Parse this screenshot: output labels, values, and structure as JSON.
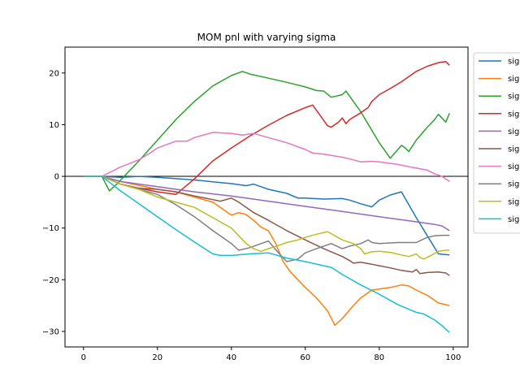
{
  "chart_data": {
    "type": "line",
    "title": "MOM pnl with varying sigma",
    "xlabel": "",
    "ylabel": "",
    "xlim": [
      -5,
      104
    ],
    "ylim": [
      -33,
      25
    ],
    "x_ticks": [
      0,
      20,
      40,
      60,
      80,
      100
    ],
    "y_ticks": [
      -30,
      -20,
      -10,
      0,
      10,
      20
    ],
    "y_tick_labels": [
      "−30",
      "−20",
      "−10",
      "0",
      "10",
      "20"
    ],
    "zero_line": true,
    "grid": false,
    "legend": "right, clipped",
    "legend_labels": [
      "sig",
      "sig",
      "sig",
      "sig",
      "sig",
      "sig",
      "sig",
      "sig",
      "sig",
      "sig"
    ],
    "series": [
      {
        "color": "#1f77b4",
        "x": [
          0,
          5,
          10,
          15,
          20,
          30,
          40,
          44,
          46,
          48,
          50,
          55,
          58,
          60,
          65,
          70,
          72,
          75,
          78,
          80,
          83,
          86,
          88,
          90,
          93,
          96,
          99
        ],
        "y": [
          0,
          0,
          -0.2,
          0,
          -0.2,
          -0.7,
          -1.4,
          -1.8,
          -1.5,
          -2.0,
          -2.5,
          -3.3,
          -4.2,
          -4.2,
          -4.4,
          -4.3,
          -4.6,
          -5.3,
          -5.9,
          -4.6,
          -3.6,
          -3.0,
          -5.5,
          -8.0,
          -11.5,
          -15.0,
          -15.2
        ]
      },
      {
        "color": "#ff7f0e",
        "x": [
          0,
          5,
          10,
          20,
          25,
          30,
          35,
          38,
          40,
          42,
          44,
          46,
          48,
          50,
          52,
          54,
          56,
          58,
          60,
          63,
          66,
          68,
          70,
          73,
          75,
          78,
          80,
          83,
          86,
          88,
          90,
          93,
          96,
          99
        ],
        "y": [
          0,
          0,
          -1.0,
          -2.5,
          -3.0,
          -4.0,
          -5.0,
          -6.5,
          -7.5,
          -7.0,
          -7.4,
          -8.5,
          -9.8,
          -10.5,
          -13.0,
          -16.5,
          -18.5,
          -20.0,
          -21.5,
          -23.5,
          -26.0,
          -28.8,
          -27.5,
          -25.0,
          -23.5,
          -22.0,
          -21.8,
          -21.5,
          -21.0,
          -21.2,
          -22.0,
          -23.0,
          -24.5,
          -25.0
        ]
      },
      {
        "color": "#2ca02c",
        "x": [
          0,
          5,
          7,
          9,
          15,
          20,
          25,
          30,
          35,
          40,
          43,
          45,
          50,
          55,
          60,
          63,
          65,
          67,
          70,
          71,
          73,
          75,
          80,
          83,
          86,
          87,
          88,
          90,
          93,
          95,
          96,
          98,
          99
        ],
        "y": [
          0,
          0,
          -2.8,
          -1.5,
          3.0,
          7.0,
          11.0,
          14.5,
          17.5,
          19.5,
          20.3,
          19.8,
          19.0,
          18.2,
          17.3,
          16.6,
          16.5,
          15.3,
          15.8,
          16.5,
          14.5,
          12.5,
          6.5,
          3.5,
          6.0,
          5.5,
          4.8,
          7.0,
          9.5,
          11.0,
          12.0,
          10.5,
          12.2
        ]
      },
      {
        "color": "#d62728",
        "x": [
          0,
          5,
          10,
          15,
          20,
          25,
          30,
          35,
          40,
          45,
          50,
          55,
          60,
          62,
          64,
          66,
          67,
          69,
          70,
          71,
          72,
          75,
          77,
          78,
          80,
          83,
          86,
          88,
          90,
          93,
          96,
          98,
          99
        ],
        "y": [
          0,
          0,
          -1.5,
          -2.3,
          -3.0,
          -3.5,
          -0.5,
          3.0,
          5.5,
          7.8,
          9.9,
          11.8,
          13.3,
          13.8,
          11.8,
          9.8,
          9.5,
          10.5,
          11.3,
          10.2,
          11.0,
          12.3,
          13.3,
          14.5,
          15.8,
          17.0,
          18.3,
          19.3,
          20.3,
          21.3,
          22.0,
          22.2,
          21.5
        ]
      },
      {
        "color": "#9467bd",
        "x": [
          0,
          5,
          10,
          20,
          30,
          40,
          50,
          60,
          70,
          80,
          90,
          95,
          97,
          99
        ],
        "y": [
          0,
          0,
          -1.0,
          -2.0,
          -3.0,
          -3.8,
          -4.8,
          -5.8,
          -6.8,
          -7.8,
          -8.8,
          -9.3,
          -9.6,
          -10.5
        ]
      },
      {
        "color": "#8c564b",
        "x": [
          0,
          5,
          10,
          15,
          20,
          25,
          30,
          35,
          37,
          40,
          42,
          44,
          46,
          50,
          55,
          60,
          65,
          70,
          72,
          73,
          75,
          78,
          80,
          83,
          86,
          89,
          90,
          91,
          93,
          96,
          98,
          99
        ],
        "y": [
          0,
          0,
          -1.5,
          -2.3,
          -2.5,
          -3.0,
          -3.8,
          -4.5,
          -4.8,
          -4.2,
          -5.0,
          -6.0,
          -7.0,
          -8.5,
          -10.5,
          -12.3,
          -14.0,
          -15.5,
          -16.3,
          -16.8,
          -16.6,
          -17.0,
          -17.3,
          -17.7,
          -18.2,
          -18.5,
          -18.0,
          -18.8,
          -18.6,
          -18.5,
          -18.7,
          -19.2
        ]
      },
      {
        "color": "#e377c2",
        "x": [
          0,
          5,
          10,
          15,
          18,
          20,
          25,
          28,
          30,
          35,
          40,
          43,
          46,
          48,
          50,
          55,
          60,
          62,
          65,
          70,
          73,
          75,
          78,
          80,
          85,
          90,
          93,
          95,
          97,
          99
        ],
        "y": [
          0,
          0,
          1.8,
          3.2,
          4.5,
          5.5,
          6.8,
          6.8,
          7.5,
          8.5,
          8.3,
          8.0,
          8.3,
          7.9,
          7.5,
          6.5,
          5.2,
          4.5,
          4.3,
          3.7,
          3.2,
          2.8,
          2.9,
          2.8,
          2.3,
          1.6,
          1.2,
          0.5,
          0.0,
          -1.0
        ]
      },
      {
        "color": "#7f7f7f",
        "x": [
          0,
          5,
          10,
          15,
          20,
          25,
          30,
          35,
          40,
          42,
          45,
          48,
          50,
          53,
          55,
          58,
          60,
          63,
          65,
          67,
          70,
          72,
          75,
          77,
          78,
          80,
          85,
          90,
          93,
          95,
          97,
          99
        ],
        "y": [
          0,
          0,
          -1.5,
          -2.5,
          -3.5,
          -5.5,
          -7.8,
          -10.5,
          -13.0,
          -14.3,
          -13.8,
          -13.0,
          -12.5,
          -15.0,
          -16.5,
          -16.0,
          -14.8,
          -14.0,
          -13.5,
          -13.0,
          -14.0,
          -13.5,
          -13.0,
          -12.3,
          -12.8,
          -13.0,
          -12.8,
          -12.8,
          -11.8,
          -11.5,
          -11.4,
          -11.4
        ]
      },
      {
        "color": "#bcbd22",
        "x": [
          0,
          5,
          10,
          15,
          20,
          25,
          30,
          35,
          38,
          40,
          42,
          44,
          46,
          48,
          50,
          53,
          55,
          58,
          60,
          63,
          66,
          68,
          70,
          73,
          75,
          76,
          78,
          80,
          83,
          86,
          88,
          90,
          91,
          92,
          94,
          96,
          98,
          99
        ],
        "y": [
          0,
          0,
          -1.5,
          -2.5,
          -4.0,
          -5.0,
          -6.0,
          -8.0,
          -9.2,
          -10.0,
          -11.5,
          -13.0,
          -14.0,
          -14.5,
          -14.0,
          -13.3,
          -12.8,
          -12.3,
          -11.8,
          -11.2,
          -10.7,
          -11.5,
          -12.3,
          -13.0,
          -14.0,
          -15.0,
          -14.6,
          -14.5,
          -14.7,
          -15.2,
          -15.5,
          -15.0,
          -15.7,
          -16.0,
          -15.3,
          -14.5,
          -14.3,
          -14.3
        ]
      },
      {
        "color": "#17becf",
        "x": [
          0,
          5,
          10,
          15,
          20,
          25,
          30,
          35,
          37,
          40,
          45,
          50,
          55,
          60,
          65,
          67,
          70,
          75,
          80,
          85,
          90,
          92,
          95,
          97,
          99
        ],
        "y": [
          0,
          0,
          -2.8,
          -5.3,
          -7.8,
          -10.3,
          -12.7,
          -15.0,
          -15.3,
          -15.3,
          -15.0,
          -14.8,
          -15.8,
          -16.5,
          -17.3,
          -17.6,
          -19.0,
          -21.0,
          -22.8,
          -24.8,
          -26.3,
          -26.6,
          -27.8,
          -28.9,
          -30.2
        ]
      }
    ]
  }
}
